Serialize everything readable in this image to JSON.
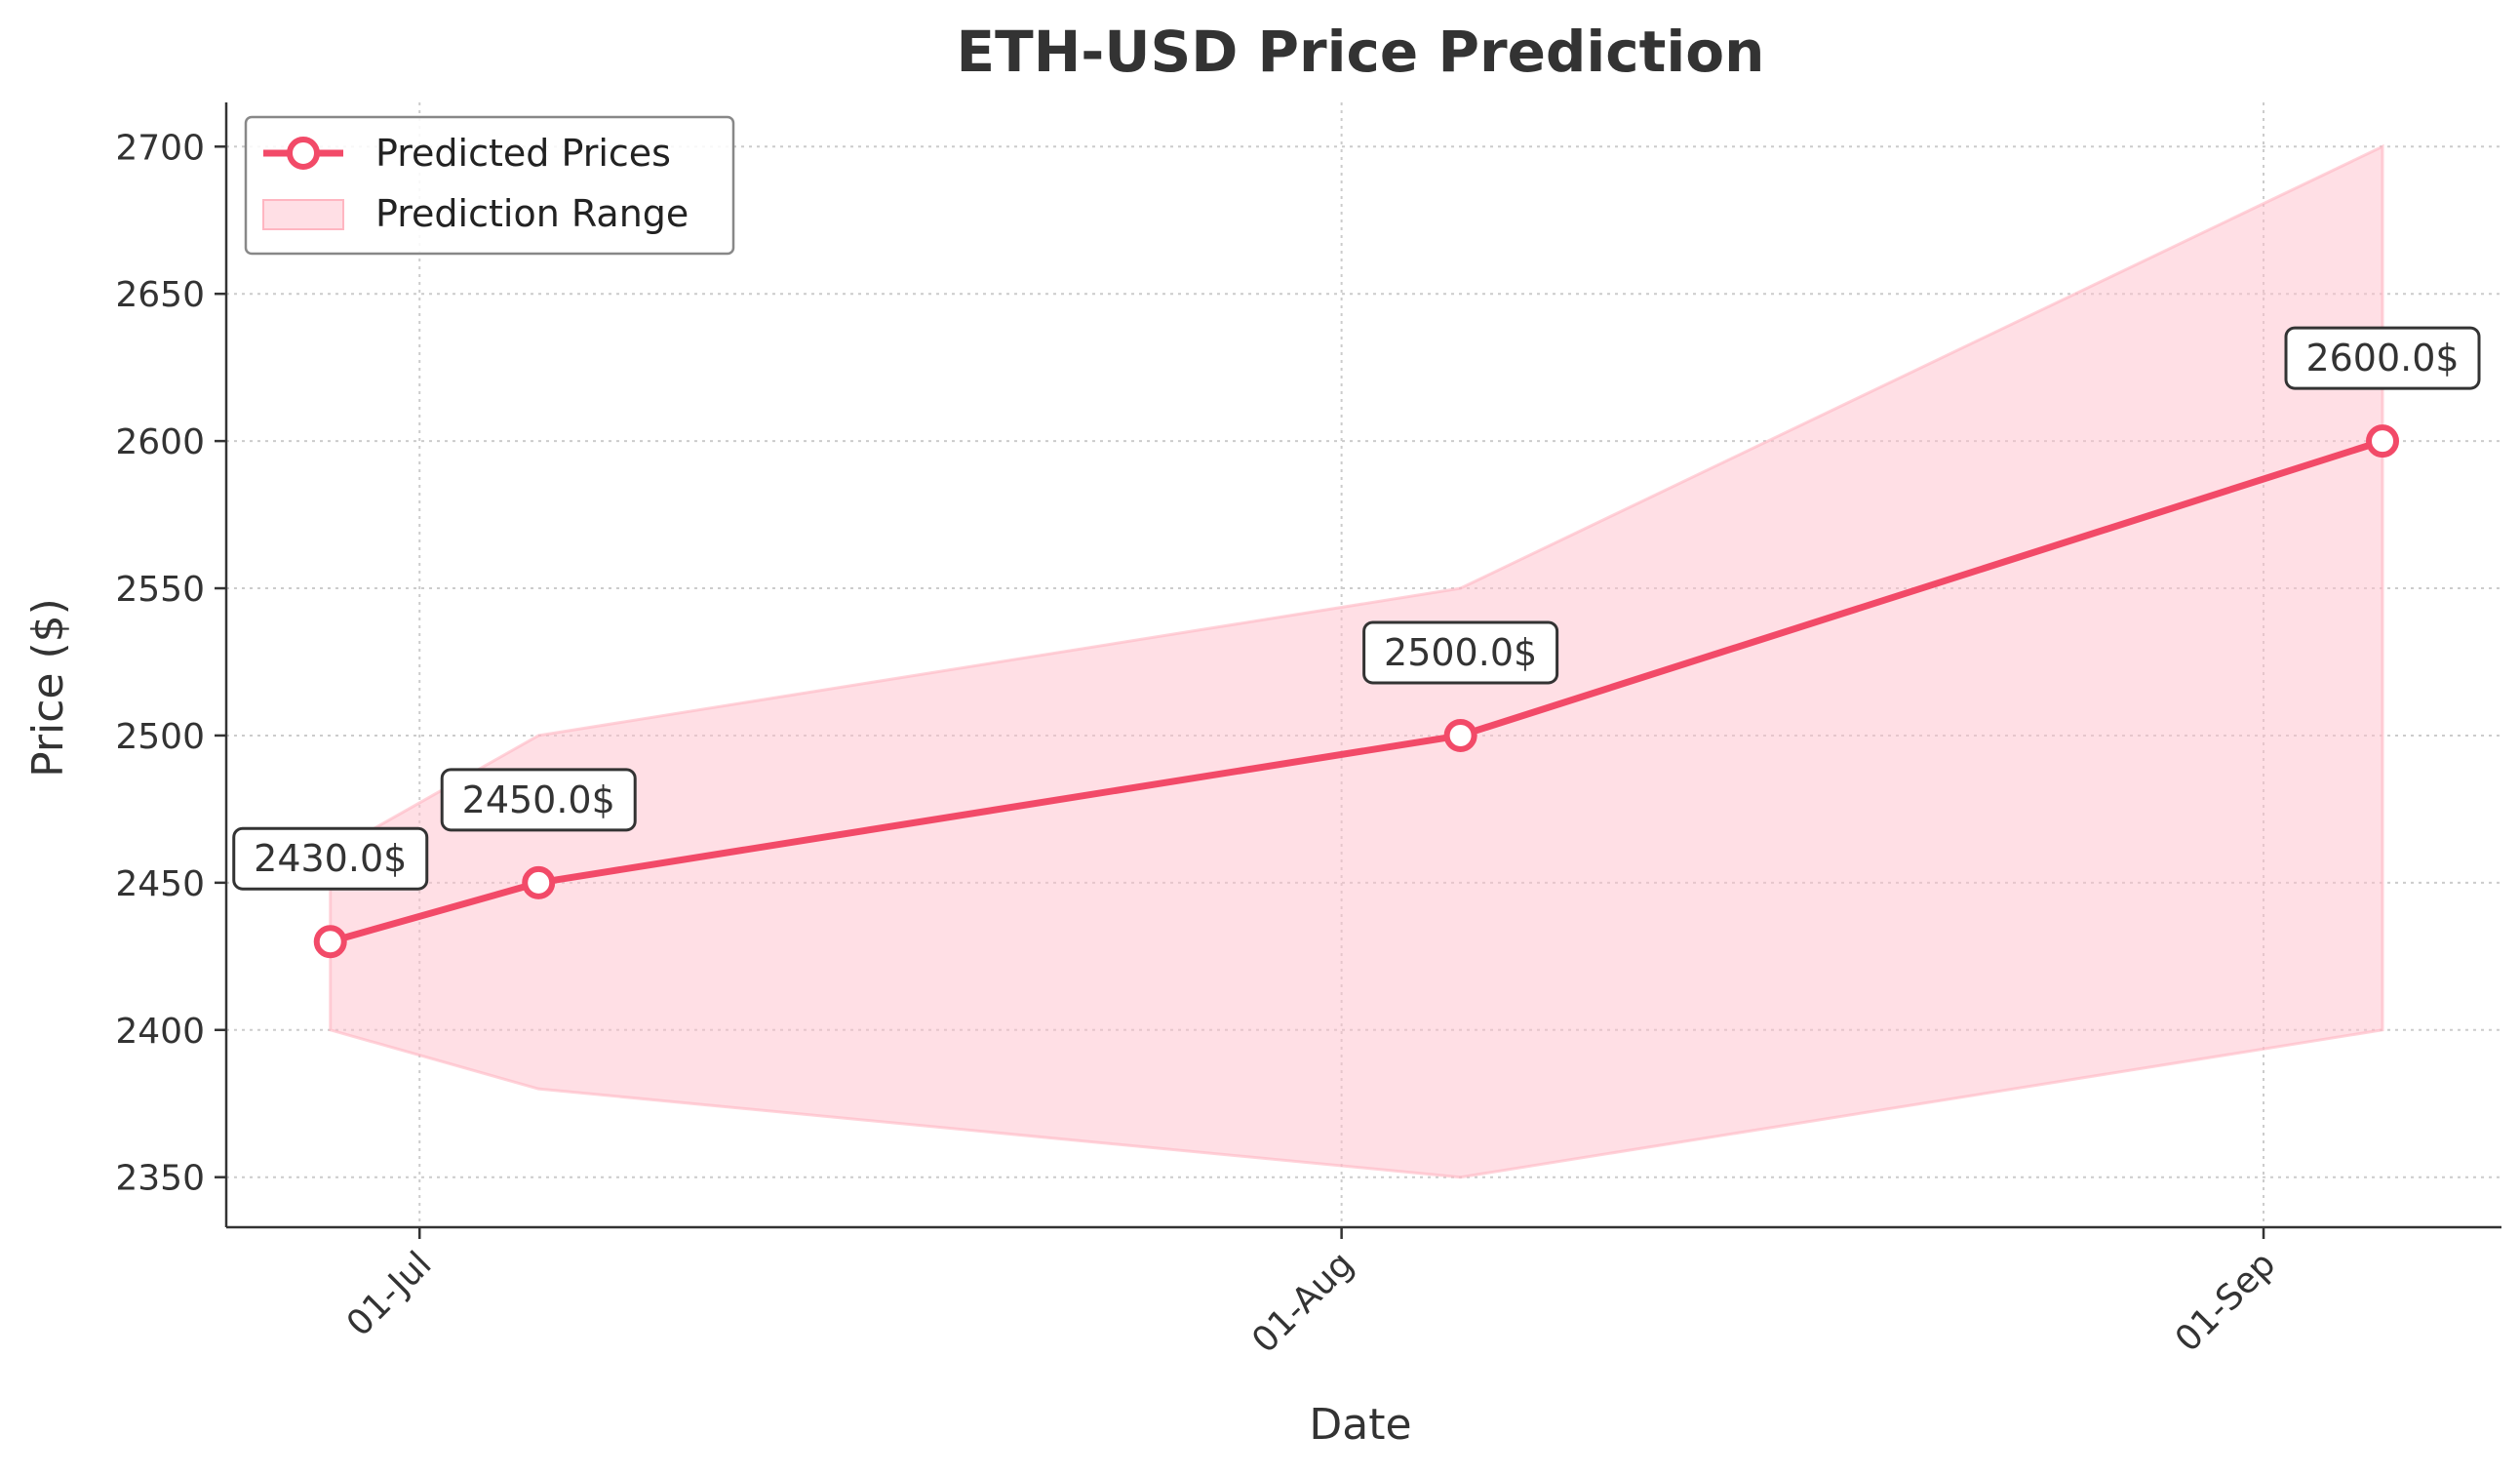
{
  "chart_data": {
    "type": "line",
    "title": "ETH-USD Price Prediction",
    "xlabel": "Date",
    "ylabel": "Price ($)",
    "x_ticks": [
      {
        "label": "01-Jul",
        "day": 0
      },
      {
        "label": "01-Aug",
        "day": 31
      },
      {
        "label": "01-Sep",
        "day": 62
      }
    ],
    "x_range_days": [
      -6.5,
      70
    ],
    "ylim": [
      2333,
      2715
    ],
    "y_ticks": [
      2350,
      2400,
      2450,
      2500,
      2550,
      2600,
      2650,
      2700
    ],
    "grid": true,
    "legend_location": "top-left",
    "series": [
      {
        "name": "Predicted Prices",
        "color": "#f24a68",
        "points": [
          {
            "day": -3,
            "value": 2430,
            "label": "2430.0$"
          },
          {
            "day": 4,
            "value": 2450,
            "label": "2450.0$"
          },
          {
            "day": 35,
            "value": 2500,
            "label": "2500.0$"
          },
          {
            "day": 66,
            "value": 2600,
            "label": "2600.0$"
          }
        ]
      }
    ],
    "range": {
      "name": "Prediction Range",
      "color": "#ffc0cb",
      "days": [
        -3,
        4,
        35,
        66
      ],
      "lower": [
        2400,
        2380,
        2350,
        2400
      ],
      "upper": [
        2460,
        2500,
        2550,
        2700
      ]
    }
  }
}
